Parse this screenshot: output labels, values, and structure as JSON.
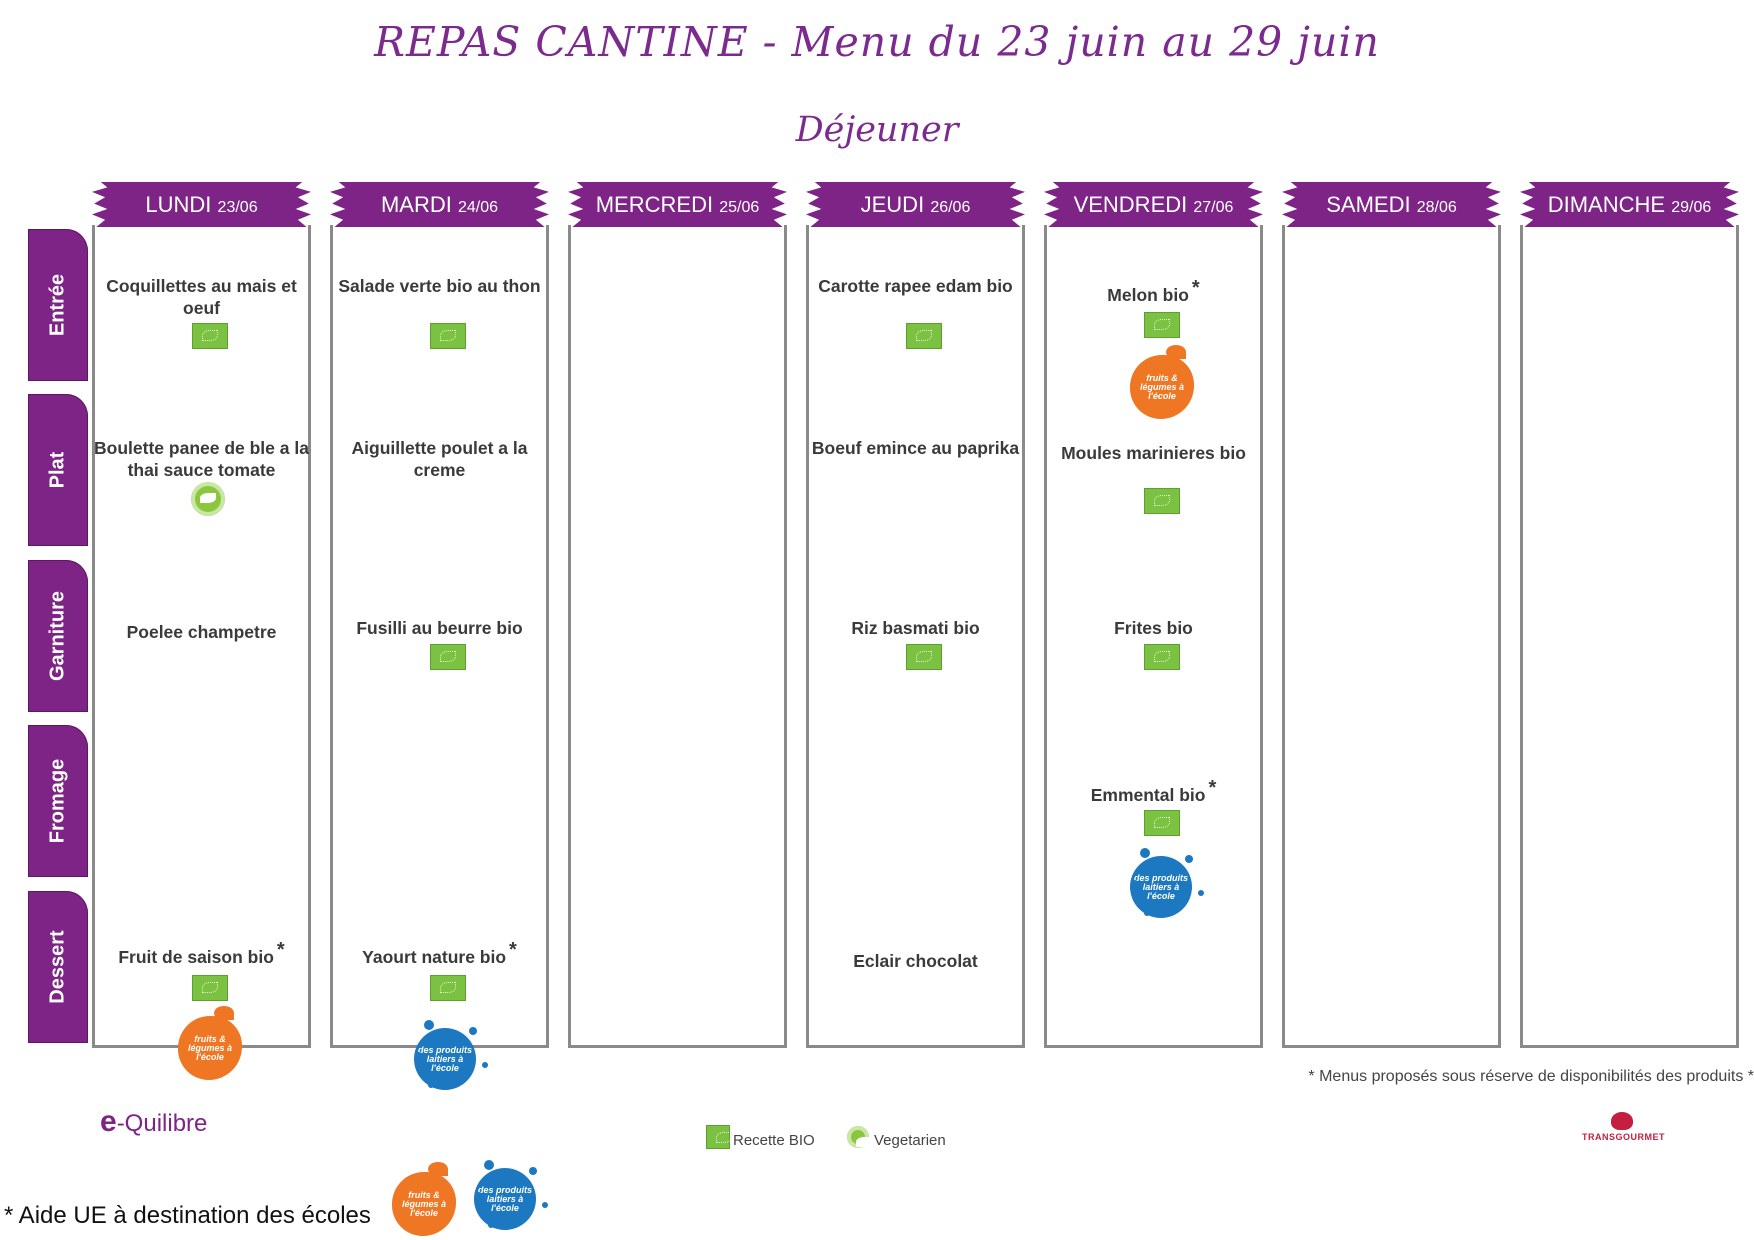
{
  "title": "REPAS CANTINE - Menu du 23 juin au 29 juin",
  "subtitle": "Déjeuner",
  "rows": [
    "Entrée",
    "Plat",
    "Garniture",
    "Fromage",
    "Dessert"
  ],
  "days": [
    {
      "name": "LUNDI",
      "date": "23/06"
    },
    {
      "name": "MARDI",
      "date": "24/06"
    },
    {
      "name": "MERCREDI",
      "date": "25/06"
    },
    {
      "name": "JEUDI",
      "date": "26/06"
    },
    {
      "name": "VENDREDI",
      "date": "27/06"
    },
    {
      "name": "SAMEDI",
      "date": "28/06"
    },
    {
      "name": "DIMANCHE",
      "date": "29/06"
    }
  ],
  "dishes": {
    "lundi_entree": "Coquillettes au mais et oeuf",
    "lundi_plat": "Boulette panee de ble a la thai sauce tomate",
    "lundi_garniture": "Poelee champetre",
    "lundi_dessert": "Fruit de saison bio",
    "mardi_entree": "Salade verte bio au thon",
    "mardi_plat": "Aiguillette poulet a la creme",
    "mardi_garniture": "Fusilli au beurre bio",
    "mardi_dessert": "Yaourt nature bio",
    "jeudi_entree": "Carotte rapee edam bio",
    "jeudi_plat": "Boeuf emince au paprika",
    "jeudi_garniture": "Riz basmati bio",
    "jeudi_dessert": "Eclair chocolat",
    "vendredi_entree": "Melon bio",
    "vendredi_plat": "Moules marinieres bio",
    "vendredi_garniture": "Frites bio",
    "vendredi_fromage": "Emmental bio"
  },
  "star": "*",
  "logos": {
    "fruit_text": "fruits & légumes à l'école",
    "milk_text": "des produits laitiers à l'école",
    "equilibre": "e-Quilibre",
    "equilibre_letter": "e",
    "equilibre_rest": "-Quilibre",
    "transgourmet": "TRANSGOURMET"
  },
  "note": "* Menus proposés sous réserve de disponibilités des produits *",
  "legend": {
    "bio": "Recette BIO",
    "veg": "Vegetarien"
  },
  "footer": "* Aide UE à destination des écoles",
  "colors": {
    "purple": "#7e2487",
    "bio_green": "#7bc142",
    "fruit_orange": "#ef7622",
    "milk_blue": "#1c78c0",
    "border_gray": "#8a8a8a"
  }
}
